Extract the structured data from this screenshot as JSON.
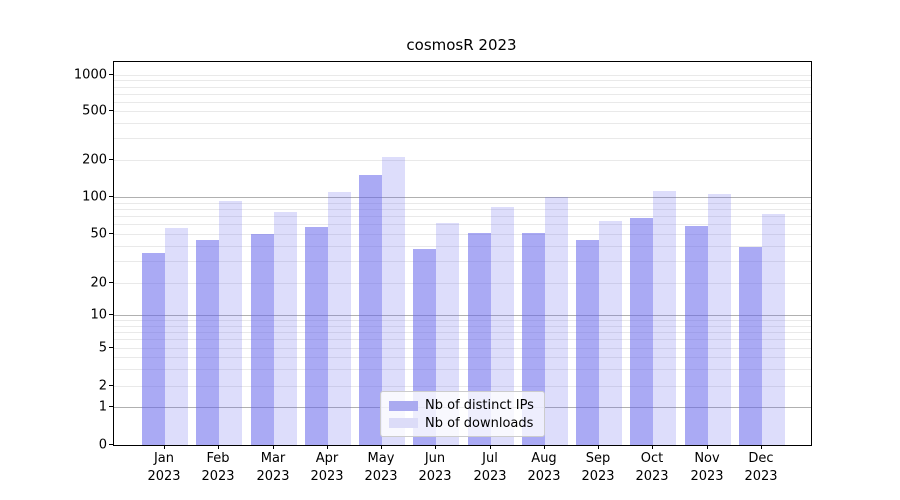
{
  "chart_data": {
    "type": "bar",
    "title": "cosmosR 2023",
    "categories": [
      "Jan",
      "Feb",
      "Mar",
      "Apr",
      "May",
      "Jun",
      "Jul",
      "Aug",
      "Sep",
      "Oct",
      "Nov",
      "Dec"
    ],
    "x_sub_label": "2023",
    "series": [
      {
        "name": "Nb of distinct IPs",
        "fill": "rgba(100,100,235,0.55)",
        "swatch_color": "#aaaaf0",
        "values": [
          35,
          45,
          50,
          57,
          150,
          38,
          51,
          51,
          45,
          68,
          58,
          39
        ]
      },
      {
        "name": "Nb of downloads",
        "fill": "rgba(100,100,235,0.22)",
        "swatch_color": "#dcdcf8",
        "values": [
          56,
          92,
          75,
          110,
          210,
          61,
          83,
          100,
          64,
          112,
          105,
          73
        ]
      }
    ],
    "y_tick_values": [
      0,
      1,
      2,
      5,
      10,
      20,
      50,
      100,
      200,
      500,
      1000
    ],
    "y_axis_scale": "symlog",
    "ylim": [
      0,
      1300
    ],
    "grid": true,
    "legend_position": "lower center"
  }
}
